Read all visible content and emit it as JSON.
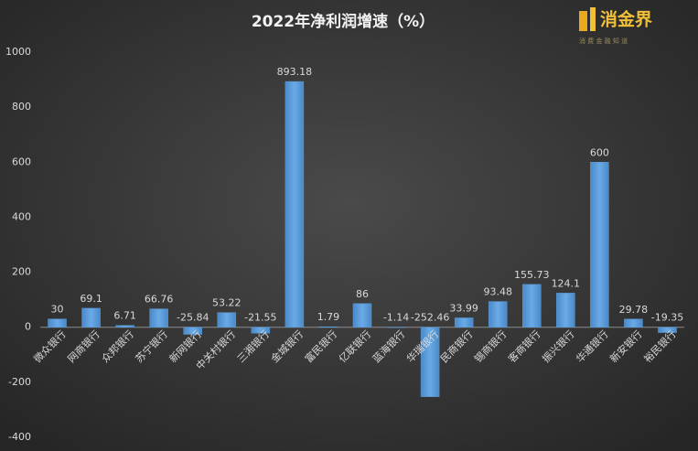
{
  "chart_data": {
    "type": "bar",
    "title": "2022年净利润增速（%）",
    "logo": "消金界",
    "logo_sub": "消 费 金 融 知 道",
    "categories": [
      "微众银行",
      "网商银行",
      "众邦银行",
      "苏宁银行",
      "新网银行",
      "中关村银行",
      "三湘银行",
      "金城银行",
      "富民银行",
      "亿联银行",
      "蓝海银行",
      "华瑞银行",
      "民商银行",
      "锡商银行",
      "客商银行",
      "振兴银行",
      "华通银行",
      "新安银行",
      "裕民银行"
    ],
    "values": [
      30,
      69.1,
      6.71,
      66.76,
      -25.84,
      53.22,
      -21.55,
      893.18,
      1.79,
      86,
      -1.14,
      -252.46,
      33.99,
      93.48,
      155.73,
      124.1,
      600,
      29.78,
      -19.35
    ],
    "color": "#5b9bd5",
    "ylim": [
      -400,
      1000
    ],
    "yticks": [
      -400,
      -200,
      0,
      200,
      400,
      600,
      800,
      1000
    ],
    "grid": false
  }
}
